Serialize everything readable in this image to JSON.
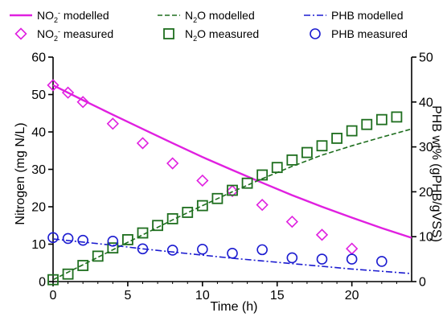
{
  "chart_data": {
    "type": "line",
    "xlabel": "Time (h)",
    "ylabel_left": "Nitrogen (mg N/L)",
    "ylabel_right": "PHB wt% (gPHB/gVSS)",
    "xlim": [
      0,
      24
    ],
    "ylim_left": [
      0,
      60
    ],
    "ylim_right": [
      0,
      50
    ],
    "xticks": [
      0,
      5,
      10,
      15,
      20
    ],
    "yticks_left": [
      0,
      10,
      20,
      30,
      40,
      50,
      60
    ],
    "yticks_right": [
      0,
      10,
      20,
      30,
      40,
      50
    ],
    "grid": false,
    "legend_placement": "top",
    "series": [
      {
        "name": "NO2- modelled",
        "label_main": "NO",
        "label_sub": "2",
        "label_sup": "-",
        "label_tail": " modelled",
        "kind": "line",
        "axis": "left",
        "color": "#e020e0",
        "dash": "solid",
        "x": [
          0,
          2,
          4,
          6,
          8,
          10,
          12,
          14,
          16,
          18,
          20,
          22,
          24
        ],
        "y": [
          52.5,
          48.5,
          44.6,
          40.8,
          37.0,
          33.3,
          29.8,
          26.4,
          23.1,
          20.0,
          17.1,
          14.3,
          11.7
        ]
      },
      {
        "name": "N2O modelled",
        "label_main": "N",
        "label_sub": "2",
        "label_sup": "",
        "label_tail": "O modelled",
        "kind": "line",
        "axis": "left",
        "color": "#1e6e1e",
        "dash": "dashed",
        "x": [
          0,
          2,
          4,
          6,
          8,
          10,
          12,
          14,
          16,
          18,
          20,
          22,
          24
        ],
        "y": [
          0.5,
          4.5,
          8.5,
          12.5,
          16.5,
          20.3,
          24.0,
          27.5,
          30.8,
          33.8,
          36.3,
          38.6,
          40.8
        ]
      },
      {
        "name": "PHB modelled",
        "label_main": "PHB modelled",
        "label_sub": "",
        "label_sup": "",
        "label_tail": "",
        "kind": "line",
        "axis": "right",
        "color": "#1c1cd0",
        "dash": "dashdot",
        "x": [
          0,
          2,
          4,
          6,
          8,
          10,
          12,
          14,
          16,
          18,
          20,
          22,
          24
        ],
        "y": [
          9.5,
          8.8,
          8.1,
          7.3,
          6.6,
          5.9,
          5.2,
          4.6,
          4.0,
          3.4,
          2.8,
          2.3,
          1.8
        ]
      },
      {
        "name": "NO2- measured",
        "label_main": "NO",
        "label_sub": "2",
        "label_sup": "-",
        "label_tail": " measured",
        "kind": "marker",
        "marker": "diamond",
        "axis": "left",
        "color": "#e020e0",
        "x": [
          0,
          1,
          2,
          4,
          6,
          8,
          10,
          12,
          14,
          16,
          18,
          20
        ],
        "y": [
          52.5,
          50.5,
          48.0,
          42.2,
          37.0,
          31.6,
          27.0,
          24.2,
          20.5,
          16.0,
          12.5,
          8.8
        ]
      },
      {
        "name": "N2O measured",
        "label_main": "N",
        "label_sub": "2",
        "label_sup": "",
        "label_tail": "O measured",
        "kind": "marker",
        "marker": "square",
        "axis": "left",
        "color": "#1e6e1e",
        "x": [
          0,
          1,
          2,
          3,
          4,
          5,
          6,
          7,
          8,
          9,
          10,
          11,
          12,
          13,
          14,
          15,
          16,
          17,
          18,
          19,
          20,
          21,
          22,
          23
        ],
        "y": [
          0.5,
          2.0,
          4.3,
          6.8,
          9.0,
          11.2,
          13.0,
          15.0,
          16.8,
          18.5,
          20.3,
          22.2,
          24.4,
          26.3,
          28.5,
          30.5,
          32.5,
          34.5,
          36.3,
          38.3,
          40.3,
          42.0,
          43.3,
          44.0
        ]
      },
      {
        "name": "PHB measured",
        "label_main": "PHB measured",
        "label_sub": "",
        "label_sup": "",
        "label_tail": "",
        "kind": "marker",
        "marker": "circle",
        "axis": "right",
        "color": "#1c1cd0",
        "x": [
          0,
          1,
          2,
          4,
          6,
          8,
          10,
          12,
          14,
          16,
          18,
          20,
          22
        ],
        "y": [
          9.8,
          9.6,
          9.2,
          9.0,
          7.3,
          7.0,
          7.2,
          6.3,
          7.1,
          5.3,
          5.0,
          5.0,
          4.5
        ]
      }
    ],
    "legend_order": [
      0,
      1,
      2,
      3,
      4,
      5
    ]
  }
}
